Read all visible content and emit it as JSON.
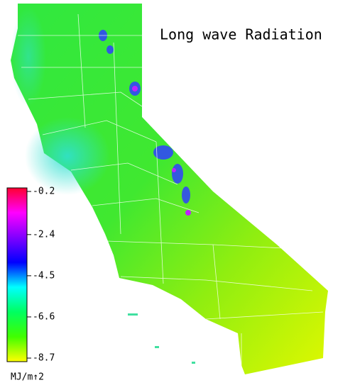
{
  "title": "Long wave Radiation",
  "colorbar": {
    "label": "MJ/m↑2",
    "lim": [
      -8.7,
      -0.2
    ],
    "ticks": [
      -0.2,
      -2.4,
      -4.5,
      -6.6,
      -8.7
    ],
    "colors": [
      "#ff0030",
      "#ff00ff",
      "#8000ff",
      "#0000ff",
      "#00ffff",
      "#00ff60",
      "#40ff00",
      "#ffff00"
    ]
  }
}
